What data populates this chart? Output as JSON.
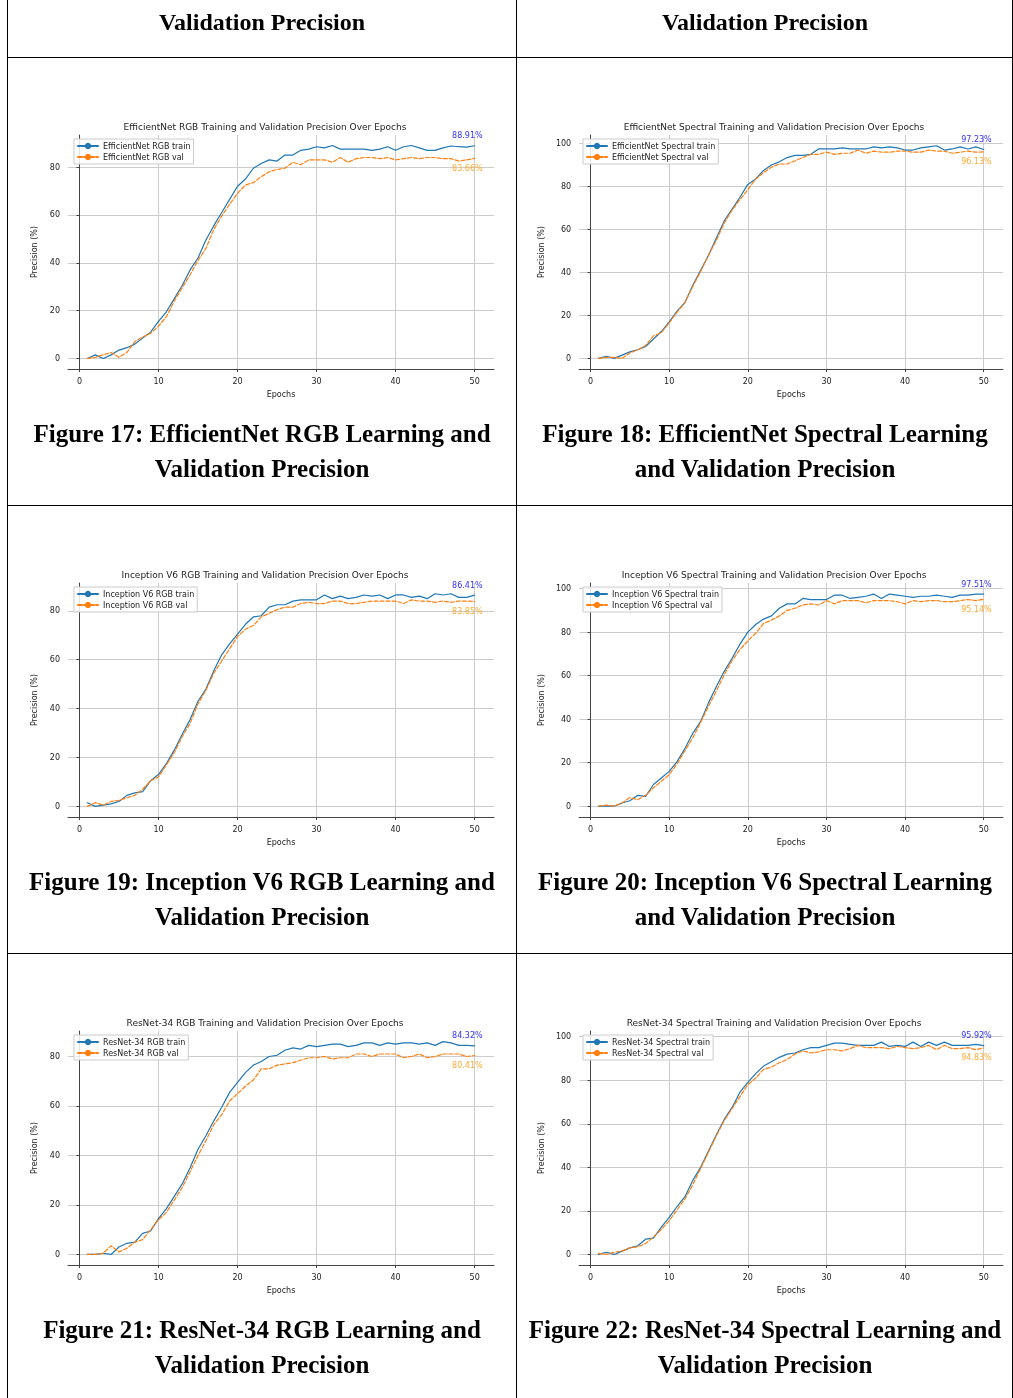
{
  "chart_data": [
    {
      "type": "line",
      "title": "EfficientNet RGB Training and Validation Precision Over Epochs",
      "xlabel": "Epochs",
      "ylabel": "Precision (%)",
      "annotations": [
        "Validation Precision",
        "Figure 17: EfficientNet RGB Learning and Validation Precision"
      ],
      "xlim": [
        -1.45,
        52.45
      ],
      "xticks": [
        0,
        10,
        20,
        30,
        40,
        50
      ],
      "ylim": [
        -4.45,
        93.4
      ],
      "yticks": [
        0,
        20,
        40,
        60,
        80
      ],
      "grid": true,
      "legend": "top left",
      "x": [
        1,
        2,
        3,
        4,
        5,
        6,
        7,
        8,
        9,
        10,
        11,
        12,
        13,
        14,
        15,
        16,
        17,
        18,
        19,
        20,
        21,
        22,
        23,
        24,
        25,
        26,
        27,
        28,
        29,
        30,
        31,
        32,
        33,
        34,
        35,
        36,
        37,
        38,
        39,
        40,
        41,
        42,
        43,
        44,
        45,
        46,
        47,
        48,
        49,
        50
      ],
      "series": [
        {
          "name": "EfficientNet RGB train",
          "color": "#1f77b4",
          "line_style": "solid",
          "values": [
            0,
            1.5,
            0,
            1.5,
            3.5,
            4.5,
            6,
            8.5,
            11,
            15.5,
            19.5,
            25,
            30.5,
            37,
            42,
            49.5,
            55.5,
            61,
            66.5,
            72,
            75,
            79.5,
            81.5,
            83,
            82.5,
            85,
            85,
            87,
            87.5,
            88.5,
            88,
            89,
            87.5,
            87.5,
            87.5,
            87.5,
            87,
            87.5,
            88.5,
            87,
            88.5,
            89,
            88,
            87,
            87,
            88,
            88.8,
            88.5,
            88.3,
            88.91
          ],
          "value_labels": [
            null,
            null,
            null,
            null,
            null,
            null,
            null,
            null,
            null,
            null,
            null,
            null,
            null,
            null,
            null,
            null,
            null,
            null,
            null,
            null,
            null,
            null,
            null,
            null,
            null,
            null,
            null,
            null,
            null,
            null,
            null,
            null,
            null,
            null,
            null,
            null,
            null,
            null,
            null,
            null,
            null,
            null,
            null,
            null,
            null,
            null,
            null,
            null,
            null,
            "88.91%"
          ]
        },
        {
          "name": "EfficientNet RGB val",
          "color": "#ff7f0e",
          "line_style": "dashed",
          "values": [
            0,
            0.5,
            1.5,
            2.5,
            0.5,
            2.5,
            7,
            9,
            10.5,
            13.5,
            17.5,
            24,
            29.5,
            35,
            41,
            46,
            54,
            59.5,
            64.5,
            69,
            72.5,
            73.5,
            76,
            78,
            79,
            79.5,
            82,
            81,
            83,
            83,
            83,
            82,
            84,
            82,
            83.5,
            84,
            84,
            83.5,
            84,
            83,
            83.5,
            84,
            83.5,
            84,
            84,
            83.5,
            83.5,
            82.5,
            83,
            83.66
          ],
          "value_labels": [
            null,
            null,
            null,
            null,
            null,
            null,
            null,
            null,
            null,
            null,
            null,
            null,
            null,
            null,
            null,
            null,
            null,
            null,
            null,
            null,
            null,
            null,
            null,
            null,
            null,
            null,
            null,
            null,
            null,
            null,
            null,
            null,
            null,
            null,
            null,
            null,
            null,
            null,
            null,
            null,
            null,
            null,
            null,
            null,
            null,
            null,
            null,
            null,
            null,
            "83.66%"
          ]
        }
      ]
    },
    {
      "type": "line",
      "title": "EfficientNet Spectral Training and Validation Precision Over Epochs",
      "xlabel": "Epochs",
      "ylabel": "Precision (%)",
      "annotations": [
        "Validation Precision",
        "Figure 18: EfficientNet Spectral Learning and Validation Precision"
      ],
      "xlim": [
        -1.45,
        52.45
      ],
      "xticks": [
        0,
        10,
        20,
        30,
        40,
        50
      ],
      "ylim": [
        -5,
        104
      ],
      "yticks": [
        0,
        20,
        40,
        60,
        80,
        100
      ],
      "grid": true,
      "legend": "top left",
      "x": [
        1,
        2,
        3,
        4,
        5,
        6,
        7,
        8,
        9,
        10,
        11,
        12,
        13,
        14,
        15,
        16,
        17,
        18,
        19,
        20,
        21,
        22,
        23,
        24,
        25,
        26,
        27,
        28,
        29,
        30,
        31,
        32,
        33,
        34,
        35,
        36,
        37,
        38,
        39,
        40,
        41,
        42,
        43,
        44,
        45,
        46,
        47,
        48,
        49,
        50
      ],
      "series": [
        {
          "name": "EfficientNet Spectral train",
          "color": "#1f77b4",
          "line_style": "solid",
          "values": [
            0,
            1,
            0,
            1.5,
            3,
            4,
            5.5,
            9,
            12.5,
            17,
            22,
            26,
            34,
            41,
            48,
            56,
            64,
            69.5,
            75,
            81,
            83.5,
            87.5,
            90,
            91.5,
            93.5,
            94.5,
            94.5,
            95,
            97.5,
            97.5,
            97.5,
            98,
            97.5,
            97.5,
            97.5,
            98.5,
            98,
            98.5,
            98,
            97,
            97,
            98,
            98.5,
            99,
            97,
            97.5,
            98.5,
            97.5,
            98.5,
            97.23
          ],
          "value_labels": [
            null,
            null,
            null,
            null,
            null,
            null,
            null,
            null,
            null,
            null,
            null,
            null,
            null,
            null,
            null,
            null,
            null,
            null,
            null,
            null,
            null,
            null,
            null,
            null,
            null,
            null,
            null,
            null,
            null,
            null,
            null,
            null,
            null,
            null,
            null,
            null,
            null,
            null,
            null,
            null,
            null,
            null,
            null,
            null,
            null,
            null,
            null,
            null,
            null,
            "97.23%"
          ]
        },
        {
          "name": "EfficientNet Spectral val",
          "color": "#ff7f0e",
          "line_style": "dashed",
          "values": [
            0,
            0.5,
            0.5,
            0,
            2.5,
            4,
            6,
            10.5,
            12,
            16.5,
            21.5,
            26,
            33.5,
            40.5,
            48,
            55,
            63,
            69,
            74,
            78.5,
            83.5,
            86.5,
            89,
            90.5,
            90.5,
            92,
            93.5,
            95,
            95,
            96,
            95,
            95.5,
            95.5,
            97,
            95.5,
            96.5,
            96,
            96,
            96.5,
            96.5,
            96,
            96,
            97,
            96.5,
            96.5,
            95.5,
            96,
            96.5,
            96,
            96.13
          ],
          "value_labels": [
            null,
            null,
            null,
            null,
            null,
            null,
            null,
            null,
            null,
            null,
            null,
            null,
            null,
            null,
            null,
            null,
            null,
            null,
            null,
            null,
            null,
            null,
            null,
            null,
            null,
            null,
            null,
            null,
            null,
            null,
            null,
            null,
            null,
            null,
            null,
            null,
            null,
            null,
            null,
            null,
            null,
            null,
            null,
            null,
            null,
            null,
            null,
            null,
            null,
            "96.13%"
          ]
        }
      ]
    },
    {
      "type": "line",
      "title": "Inception V6 RGB Training and Validation Precision Over Epochs",
      "xlabel": "Epochs",
      "ylabel": "Precision (%)",
      "annotations": [
        "Figure 19: Inception V6 RGB Learning and Validation Precision"
      ],
      "xlim": [
        -1.45,
        52.45
      ],
      "xticks": [
        0,
        10,
        20,
        30,
        40,
        50
      ],
      "ylim": [
        -4.4,
        91.4
      ],
      "yticks": [
        0,
        20,
        40,
        60,
        80
      ],
      "grid": true,
      "legend": "top left",
      "x": [
        1,
        2,
        3,
        4,
        5,
        6,
        7,
        8,
        9,
        10,
        11,
        12,
        13,
        14,
        15,
        16,
        17,
        18,
        19,
        20,
        21,
        22,
        23,
        24,
        25,
        26,
        27,
        28,
        29,
        30,
        31,
        32,
        33,
        34,
        35,
        36,
        37,
        38,
        39,
        40,
        41,
        42,
        43,
        44,
        45,
        46,
        47,
        48,
        49,
        50
      ],
      "series": [
        {
          "name": "Inception V6 RGB train",
          "color": "#1f77b4",
          "line_style": "solid",
          "values": [
            1.5,
            0,
            0.5,
            1,
            2,
            4.5,
            5.5,
            6,
            10.5,
            13,
            17.5,
            23,
            29.5,
            35.5,
            43,
            48,
            55.5,
            62,
            66.5,
            70.5,
            74.5,
            77.5,
            78,
            81.5,
            82.5,
            82.5,
            84,
            84.5,
            84.5,
            84.5,
            86.5,
            85,
            86,
            85,
            85.5,
            86.5,
            86,
            86.5,
            85,
            86.5,
            86.5,
            85.5,
            86,
            85,
            87,
            86.5,
            87,
            85.5,
            85.5,
            86.41
          ],
          "value_labels": [
            null,
            null,
            null,
            null,
            null,
            null,
            null,
            null,
            null,
            null,
            null,
            null,
            null,
            null,
            null,
            null,
            null,
            null,
            null,
            null,
            null,
            null,
            null,
            null,
            null,
            null,
            null,
            null,
            null,
            null,
            null,
            null,
            null,
            null,
            null,
            null,
            null,
            null,
            null,
            null,
            null,
            null,
            null,
            null,
            null,
            null,
            null,
            null,
            null,
            "86.41%"
          ]
        },
        {
          "name": "Inception V6 RGB val",
          "color": "#ff7f0e",
          "line_style": "dashed",
          "values": [
            0,
            1.5,
            0.5,
            2,
            2.5,
            3.5,
            4.5,
            7,
            10.5,
            12,
            17,
            22,
            28.5,
            34,
            42,
            47.5,
            54.5,
            59.5,
            64.5,
            69.5,
            72.5,
            74,
            77.5,
            79,
            80.5,
            81.5,
            81.5,
            83,
            83.5,
            83,
            83,
            84,
            84,
            83,
            83,
            83.5,
            84,
            84,
            84,
            84,
            83,
            84.5,
            84,
            84,
            83.5,
            84,
            83.5,
            84,
            84,
            83.85
          ],
          "value_labels": [
            null,
            null,
            null,
            null,
            null,
            null,
            null,
            null,
            null,
            null,
            null,
            null,
            null,
            null,
            null,
            null,
            null,
            null,
            null,
            null,
            null,
            null,
            null,
            null,
            null,
            null,
            null,
            null,
            null,
            null,
            null,
            null,
            null,
            null,
            null,
            null,
            null,
            null,
            null,
            null,
            null,
            null,
            null,
            null,
            null,
            null,
            null,
            null,
            null,
            "83.85%"
          ]
        }
      ]
    },
    {
      "type": "line",
      "title": "Inception V6 Spectral Training and Validation Precision Over Epochs",
      "xlabel": "Epochs",
      "ylabel": "Precision (%)",
      "annotations": [
        "Figure 20: Inception V6 Spectral Learning and Validation Precision"
      ],
      "xlim": [
        -1.45,
        52.45
      ],
      "xticks": [
        0,
        10,
        20,
        30,
        40,
        50
      ],
      "ylim": [
        -5,
        102.6
      ],
      "yticks": [
        0,
        20,
        40,
        60,
        80,
        100
      ],
      "grid": true,
      "legend": "top left",
      "x": [
        1,
        2,
        3,
        4,
        5,
        6,
        7,
        8,
        9,
        10,
        11,
        12,
        13,
        14,
        15,
        16,
        17,
        18,
        19,
        20,
        21,
        22,
        23,
        24,
        25,
        26,
        27,
        28,
        29,
        30,
        31,
        32,
        33,
        34,
        35,
        36,
        37,
        38,
        39,
        40,
        41,
        42,
        43,
        44,
        45,
        46,
        47,
        48,
        49,
        50
      ],
      "series": [
        {
          "name": "Inception V6 Spectral train",
          "color": "#1f77b4",
          "line_style": "solid",
          "values": [
            0,
            0,
            0,
            1.5,
            2.5,
            5,
            4.5,
            10,
            13,
            16,
            20.5,
            26.5,
            33.5,
            39,
            47.5,
            55,
            62,
            68,
            74.5,
            80,
            83.5,
            86,
            87.5,
            91,
            93,
            93,
            95.5,
            95,
            95,
            95,
            97,
            97,
            95.5,
            96,
            96.5,
            97.5,
            95.5,
            97.5,
            97,
            96.5,
            96,
            96.5,
            96.5,
            97,
            96.5,
            96,
            97,
            97,
            97.5,
            97.51
          ],
          "value_labels": [
            null,
            null,
            null,
            null,
            null,
            null,
            null,
            null,
            null,
            null,
            null,
            null,
            null,
            null,
            null,
            null,
            null,
            null,
            null,
            null,
            null,
            null,
            null,
            null,
            null,
            null,
            null,
            null,
            null,
            null,
            null,
            null,
            null,
            null,
            null,
            null,
            null,
            null,
            null,
            null,
            null,
            null,
            null,
            null,
            null,
            null,
            null,
            null,
            null,
            "97.51%"
          ]
        },
        {
          "name": "Inception V6 Spectral val",
          "color": "#ff7f0e",
          "line_style": "dashed",
          "values": [
            0,
            0.5,
            0,
            1.5,
            4,
            3,
            5,
            8.5,
            11.5,
            14.5,
            19.5,
            25.5,
            31.5,
            38.5,
            46,
            53,
            60.5,
            67,
            72,
            76,
            79.5,
            84,
            85.5,
            87.5,
            90,
            91,
            92.5,
            93,
            92.5,
            94.5,
            93,
            94.5,
            94.5,
            94.5,
            93.5,
            94.5,
            94.5,
            94.5,
            94,
            93,
            94.5,
            94,
            94.5,
            94.5,
            94,
            94,
            94.5,
            95,
            94.5,
            95.14
          ],
          "value_labels": [
            null,
            null,
            null,
            null,
            null,
            null,
            null,
            null,
            null,
            null,
            null,
            null,
            null,
            null,
            null,
            null,
            null,
            null,
            null,
            null,
            null,
            null,
            null,
            null,
            null,
            null,
            null,
            null,
            null,
            null,
            null,
            null,
            null,
            null,
            null,
            null,
            null,
            null,
            null,
            null,
            null,
            null,
            null,
            null,
            null,
            null,
            null,
            null,
            null,
            "95.14%"
          ]
        }
      ]
    },
    {
      "type": "line",
      "title": "ResNet-34 RGB Training and Validation Precision Over Epochs",
      "xlabel": "Epochs",
      "ylabel": "Precision (%)",
      "annotations": [
        "Figure 21: ResNet-34 RGB Learning and Validation Precision"
      ],
      "xlim": [
        -1.45,
        52.45
      ],
      "xticks": [
        0,
        10,
        20,
        30,
        40,
        50
      ],
      "ylim": [
        -4.3,
        90.3
      ],
      "yticks": [
        0,
        20,
        40,
        60,
        80
      ],
      "grid": true,
      "legend": "top left",
      "x": [
        1,
        2,
        3,
        4,
        5,
        6,
        7,
        8,
        9,
        10,
        11,
        12,
        13,
        14,
        15,
        16,
        17,
        18,
        19,
        20,
        21,
        22,
        23,
        24,
        25,
        26,
        27,
        28,
        29,
        30,
        31,
        32,
        33,
        34,
        35,
        36,
        37,
        38,
        39,
        40,
        41,
        42,
        43,
        44,
        45,
        46,
        47,
        48,
        49,
        50
      ],
      "series": [
        {
          "name": "ResNet-34 RGB train",
          "color": "#1f77b4",
          "line_style": "solid",
          "values": [
            0,
            0,
            0.5,
            0,
            3,
            4.5,
            5,
            8.5,
            9.5,
            14.5,
            18.5,
            23.5,
            28.5,
            35,
            42.5,
            48,
            54,
            59.5,
            65.5,
            69.5,
            73.5,
            76.5,
            78,
            80,
            80.5,
            82.5,
            83.5,
            83,
            84.5,
            84,
            84.5,
            85,
            85,
            84,
            84.5,
            85.5,
            85.5,
            84.5,
            85.5,
            85,
            85.5,
            85.5,
            85,
            85.5,
            84.5,
            86,
            85.5,
            84.5,
            84.5,
            84.32
          ],
          "value_labels": [
            null,
            null,
            null,
            null,
            null,
            null,
            null,
            null,
            null,
            null,
            null,
            null,
            null,
            null,
            null,
            null,
            null,
            null,
            null,
            null,
            null,
            null,
            null,
            null,
            null,
            null,
            null,
            null,
            null,
            null,
            null,
            null,
            null,
            null,
            null,
            null,
            null,
            null,
            null,
            null,
            null,
            null,
            null,
            null,
            null,
            null,
            null,
            null,
            null,
            "84.32%"
          ]
        },
        {
          "name": "ResNet-34 RGB val",
          "color": "#ff7f0e",
          "line_style": "dashed",
          "values": [
            0,
            0,
            0.5,
            3.5,
            1,
            2.5,
            5,
            6,
            10,
            14,
            17,
            22,
            27,
            33.5,
            40,
            46,
            52.5,
            56.5,
            62,
            65,
            68,
            70.5,
            75,
            75,
            76.5,
            77,
            77.5,
            78.5,
            79.5,
            79.5,
            80,
            79,
            79.5,
            79.5,
            81,
            81,
            80,
            81,
            81,
            81,
            79.5,
            80,
            81,
            79.5,
            80,
            81,
            81,
            81,
            80,
            80.41
          ],
          "value_labels": [
            null,
            null,
            null,
            null,
            null,
            null,
            null,
            null,
            null,
            null,
            null,
            null,
            null,
            null,
            null,
            null,
            null,
            null,
            null,
            null,
            null,
            null,
            null,
            null,
            null,
            null,
            null,
            null,
            null,
            null,
            null,
            null,
            null,
            null,
            null,
            null,
            null,
            null,
            null,
            null,
            null,
            null,
            null,
            null,
            null,
            null,
            null,
            null,
            null,
            "80.41%"
          ]
        }
      ]
    },
    {
      "type": "line",
      "title": "ResNet-34 Spectral Training and Validation Precision Over Epochs",
      "xlabel": "Epochs",
      "ylabel": "Precision (%)",
      "annotations": [
        "Figure 22: ResNet-34 Spectral Learning and Validation Precision"
      ],
      "xlim": [
        -1.45,
        52.45
      ],
      "xticks": [
        0,
        10,
        20,
        30,
        40,
        50
      ],
      "ylim": [
        -4.9,
        102.6
      ],
      "yticks": [
        0,
        20,
        40,
        60,
        80,
        100
      ],
      "grid": true,
      "legend": "top left",
      "x": [
        1,
        2,
        3,
        4,
        5,
        6,
        7,
        8,
        9,
        10,
        11,
        12,
        13,
        14,
        15,
        16,
        17,
        18,
        19,
        20,
        21,
        22,
        23,
        24,
        25,
        26,
        27,
        28,
        29,
        30,
        31,
        32,
        33,
        34,
        35,
        36,
        37,
        38,
        39,
        40,
        41,
        42,
        43,
        44,
        45,
        46,
        47,
        48,
        49,
        50
      ],
      "series": [
        {
          "name": "ResNet-34 Spectral train",
          "color": "#1f77b4",
          "line_style": "solid",
          "values": [
            0,
            1,
            0,
            1.5,
            3,
            4,
            7,
            7.5,
            12.5,
            17,
            22,
            26.5,
            34,
            40,
            47.5,
            55,
            62,
            67.5,
            74.5,
            79,
            83,
            86.5,
            88.5,
            90.5,
            92,
            92.5,
            94,
            95,
            95,
            96,
            97,
            97,
            96.5,
            96,
            96,
            96,
            97.5,
            95.5,
            96,
            95.5,
            97.5,
            95.5,
            97.5,
            96,
            97.5,
            96,
            96,
            96,
            96.5,
            95.92
          ],
          "value_labels": [
            null,
            null,
            null,
            null,
            null,
            null,
            null,
            null,
            null,
            null,
            null,
            null,
            null,
            null,
            null,
            null,
            null,
            null,
            null,
            null,
            null,
            null,
            null,
            null,
            null,
            null,
            null,
            null,
            null,
            null,
            null,
            null,
            null,
            null,
            null,
            null,
            null,
            null,
            null,
            null,
            null,
            null,
            null,
            null,
            null,
            null,
            null,
            null,
            null,
            "95.92%"
          ]
        },
        {
          "name": "ResNet-34 Spectral val",
          "color": "#ff7f0e",
          "line_style": "dashed",
          "values": [
            0.5,
            0,
            1,
            1.5,
            3,
            3.5,
            5,
            8,
            11.5,
            15.5,
            20.5,
            25.5,
            32,
            39.5,
            47,
            54.5,
            61.5,
            67,
            72.5,
            78,
            81,
            85,
            86,
            88,
            89.5,
            92,
            93.5,
            92.5,
            93,
            94,
            94,
            93.5,
            94.5,
            96,
            95,
            95,
            95,
            94.5,
            95.5,
            95,
            94.5,
            95,
            96,
            94,
            96,
            94.5,
            94.5,
            95,
            94,
            94.83
          ],
          "value_labels": [
            null,
            null,
            null,
            null,
            null,
            null,
            null,
            null,
            null,
            null,
            null,
            null,
            null,
            null,
            null,
            null,
            null,
            null,
            null,
            null,
            null,
            null,
            null,
            null,
            null,
            null,
            null,
            null,
            null,
            null,
            null,
            null,
            null,
            null,
            null,
            null,
            null,
            null,
            null,
            null,
            null,
            null,
            null,
            null,
            null,
            null,
            null,
            null,
            null,
            "94.83%"
          ]
        }
      ]
    }
  ]
}
